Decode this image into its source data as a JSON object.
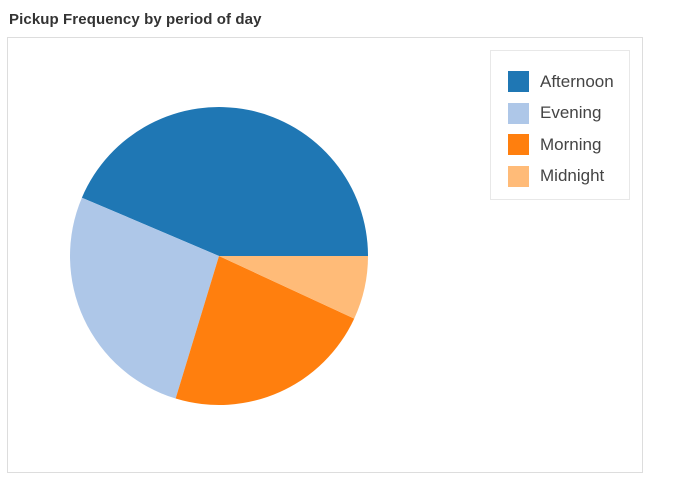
{
  "chart_data": {
    "type": "pie",
    "title": "Pickup Frequency by period of day",
    "categories": [
      "Afternoon",
      "Evening",
      "Morning",
      "Midnight"
    ],
    "values": [
      43.6,
      26.7,
      22.8,
      6.9
    ],
    "colors": [
      "#1f77b4",
      "#aec7e8",
      "#ff7f0e",
      "#ffbb78"
    ],
    "start": "3 o'clock",
    "direction": "counterclockwise",
    "legend_position": "top-right"
  }
}
